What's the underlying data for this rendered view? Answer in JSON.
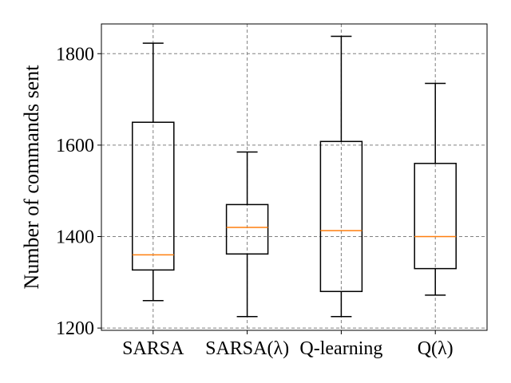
{
  "chart_data": {
    "type": "box",
    "ylabel": "Number of commands sent",
    "xlabel": "",
    "ylim": [
      1195,
      1865
    ],
    "yticks": [
      1200,
      1400,
      1600,
      1800
    ],
    "grid": true,
    "categories": [
      "SARSA",
      "SARSA(λ)",
      "Q-learning",
      "Q(λ)"
    ],
    "boxes": [
      {
        "category": "SARSA",
        "whisker_low": 1260,
        "q1": 1327,
        "median": 1360,
        "q3": 1650,
        "whisker_high": 1823
      },
      {
        "category": "SARSA(λ)",
        "whisker_low": 1225,
        "q1": 1362,
        "median": 1420,
        "q3": 1470,
        "whisker_high": 1585
      },
      {
        "category": "Q-learning",
        "whisker_low": 1225,
        "q1": 1280,
        "median": 1413,
        "q3": 1608,
        "whisker_high": 1838
      },
      {
        "category": "Q(λ)",
        "whisker_low": 1272,
        "q1": 1330,
        "median": 1400,
        "q3": 1560,
        "whisker_high": 1735
      }
    ],
    "colors": {
      "box": "#000000",
      "median": "#ff7f0e",
      "grid": "#808080"
    }
  }
}
